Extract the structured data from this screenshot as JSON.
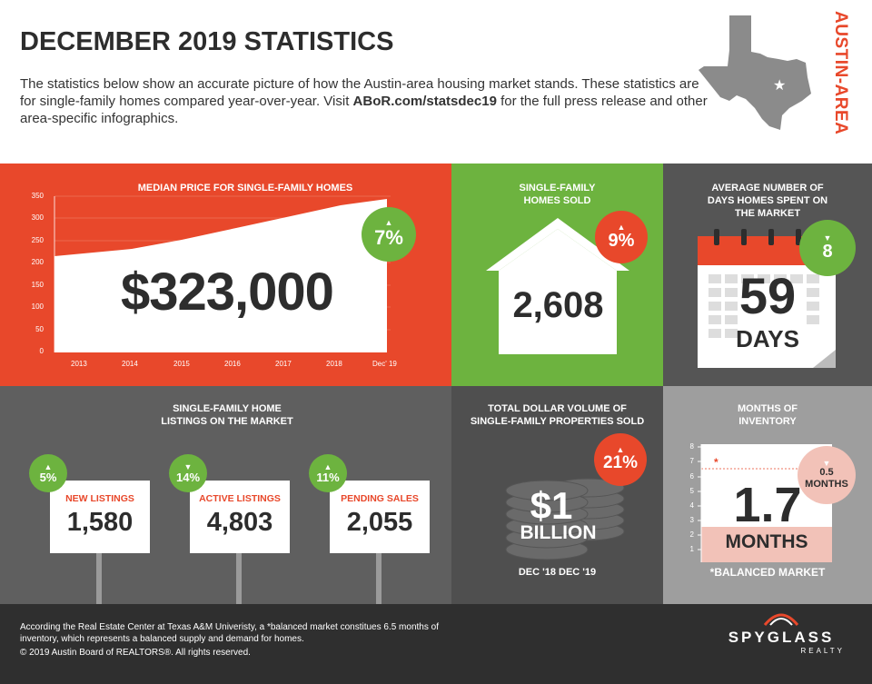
{
  "header": {
    "title": "DECEMBER 2019 STATISTICS",
    "intro_pre": "The statistics below show an accurate picture of how the Austin-area housing market stands. These statistics are for single-family homes compared year-over-year. Visit ",
    "intro_link": "ABoR.com/statsdec19",
    "intro_post": " for the full press release and other area-specific infographics.",
    "region": "AUSTIN-AREA"
  },
  "median_price": {
    "title": "MEDIAN PRICE FOR SINGLE-FAMILY HOMES",
    "value": "$323,000",
    "change": "7%",
    "y_ticks": [
      "350",
      "300",
      "250",
      "200",
      "150",
      "100",
      "50",
      "0"
    ],
    "x_ticks": [
      "2013",
      "2014",
      "2015",
      "2016",
      "2017",
      "2018",
      "Dec' 19"
    ]
  },
  "homes_sold": {
    "title_line1": "SINGLE-FAMILY",
    "title_line2": "HOMES SOLD",
    "value": "2,608",
    "change": "9%"
  },
  "days_on_market": {
    "title_line1": "AVERAGE NUMBER OF",
    "title_line2": "DAYS HOMES SPENT ON",
    "title_line3": "THE MARKET",
    "value": "59",
    "unit": "DAYS",
    "change": "8"
  },
  "listings": {
    "title_line1": "SINGLE-FAMILY HOME",
    "title_line2": "LISTINGS ON THE MARKET",
    "items": [
      {
        "label": "NEW LISTINGS",
        "value": "1,580",
        "change": "5%"
      },
      {
        "label": "ACTIVE LISTINGS",
        "value": "4,803",
        "change": "14%"
      },
      {
        "label": "PENDING SALES",
        "value": "2,055",
        "change": "11%"
      }
    ]
  },
  "dollar_volume": {
    "title_line1": "TOTAL DOLLAR VOLUME OF",
    "title_line2": "SINGLE-FAMILY PROPERTIES SOLD",
    "value": "$1",
    "unit": "BILLION",
    "change": "21%",
    "period": "DEC '18 DEC '19"
  },
  "inventory": {
    "title_line1": "MONTHS OF",
    "title_line2": "INVENTORY",
    "value": "1.7",
    "unit": "MONTHS",
    "change_value": "0.5",
    "change_unit": "MONTHS",
    "asterisk": "*",
    "note": "*BALANCED MARKET",
    "y_ticks": [
      "8",
      "7",
      "6",
      "5",
      "4",
      "3",
      "2",
      "1"
    ]
  },
  "footer": {
    "note": "According the Real Estate Center at Texas A&M Univeristy, a *balanced market constitues 6.5 months of inventory, which represents a balanced supply and demand for homes.",
    "copyright": "© 2019 Austin Board of REALTORS®. All rights reserved.",
    "brand": "SPYGLASS",
    "brand_sub": "REALTY"
  },
  "colors": {
    "orange": "#e8482b",
    "green": "#6db33f",
    "dark_gray": "#555555",
    "mid_gray": "#5f5f5f",
    "light_gray": "#9e9e9e"
  }
}
